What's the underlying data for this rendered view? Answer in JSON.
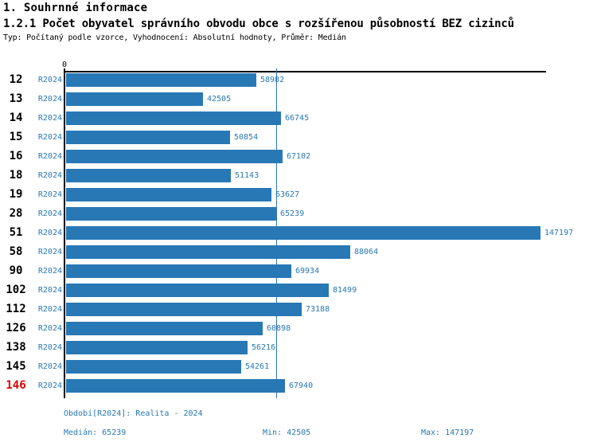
{
  "page": {
    "title": "1. Souhrnné informace",
    "subtitle": "1.2.1 Počet obyvatel správního obvodu obce s rozšířenou působností BEZ cizinců",
    "meta_line": "Typ: Počítaný podle vzorce, Vyhodnocení: Absolutní hodnoty, Průměr: Medián"
  },
  "chart_data": {
    "type": "bar",
    "orientation": "horizontal",
    "title": "1.2.1 Počet obyvatel správního obvodu obce s rozšířenou působností BEZ cizinců",
    "series_label": "R2024",
    "categories": [
      "12",
      "13",
      "14",
      "15",
      "16",
      "18",
      "19",
      "28",
      "51",
      "58",
      "90",
      "102",
      "112",
      "126",
      "138",
      "145",
      "146"
    ],
    "values": [
      58982,
      42505,
      66745,
      50854,
      67102,
      51143,
      63627,
      65239,
      147197,
      88064,
      69934,
      81499,
      73188,
      60898,
      56216,
      54261,
      67940
    ],
    "highlighted_category": "146",
    "axis": {
      "zero_label": "0",
      "xmin": 0,
      "xmax": 149500,
      "grid": false
    },
    "median_line_value": 65239,
    "legend_position": "none",
    "colors": {
      "bar": "#2878B5",
      "text_blue": "#2878B5",
      "highlight": "#DD0000",
      "axis": "#000000"
    }
  },
  "footer": {
    "period": "Období[R2024]: Realita - 2024",
    "median": "Medián: 65239",
    "min": "Min: 42505",
    "max": "Max: 147197"
  }
}
